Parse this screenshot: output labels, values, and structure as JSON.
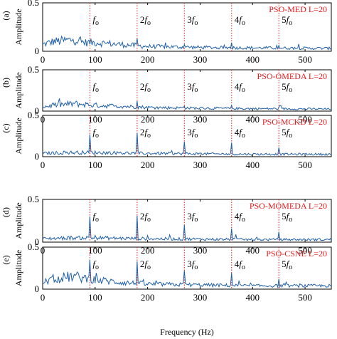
{
  "chart_data": {
    "type": "line",
    "xlabel": "Frequency (Hz)",
    "ylabel": "Amplitude",
    "xlim": [
      0,
      550
    ],
    "ylim": [
      0,
      0.5
    ],
    "xticks": [
      "0",
      "100",
      "200",
      "300",
      "400",
      "500"
    ],
    "yticks": [
      "0",
      "0.5"
    ],
    "grid": false,
    "line_color": "#1f5fa8",
    "marker_color": "#e41a1c",
    "harmonics": {
      "frequencies": [
        90,
        180,
        270,
        360,
        450
      ],
      "labels": [
        {
          "coef": "",
          "sym": "f",
          "sub": "o"
        },
        {
          "coef": "2",
          "sym": "f",
          "sub": "o"
        },
        {
          "coef": "3",
          "sym": "f",
          "sub": "o"
        },
        {
          "coef": "4",
          "sym": "f",
          "sub": "o"
        },
        {
          "coef": "5",
          "sym": "f",
          "sub": "o"
        }
      ]
    },
    "panels": [
      {
        "letter": "(a)",
        "method": "PSO-MED L=20",
        "baseline": [
          [
            0,
            0.07
          ],
          [
            20,
            0.1
          ],
          [
            40,
            0.11
          ],
          [
            60,
            0.12
          ],
          [
            80,
            0.09
          ],
          [
            100,
            0.09
          ],
          [
            150,
            0.07
          ],
          [
            200,
            0.05
          ],
          [
            300,
            0.04
          ],
          [
            400,
            0.035
          ],
          [
            550,
            0.03
          ]
        ],
        "peaks": [
          [
            180,
            0.13
          ],
          [
            270,
            0.07
          ],
          [
            360,
            0.09
          ],
          [
            450,
            0.06
          ]
        ]
      },
      {
        "letter": "(b)",
        "method": "PSO-OMEDA L=20",
        "baseline": [
          [
            0,
            0.05
          ],
          [
            20,
            0.07
          ],
          [
            40,
            0.08
          ],
          [
            60,
            0.09
          ],
          [
            80,
            0.08
          ],
          [
            100,
            0.07
          ],
          [
            150,
            0.06
          ],
          [
            200,
            0.045
          ],
          [
            300,
            0.035
          ],
          [
            400,
            0.03
          ],
          [
            550,
            0.025
          ]
        ],
        "peaks": [
          [
            180,
            0.12
          ],
          [
            270,
            0.06
          ],
          [
            360,
            0.07
          ],
          [
            450,
            0.05
          ]
        ]
      },
      {
        "letter": "(c)",
        "method": "PSO-MCKD L=20",
        "baseline": [
          [
            0,
            0.04
          ],
          [
            50,
            0.05
          ],
          [
            100,
            0.05
          ],
          [
            200,
            0.04
          ],
          [
            300,
            0.035
          ],
          [
            400,
            0.03
          ],
          [
            550,
            0.03
          ]
        ],
        "peaks": [
          [
            90,
            0.27
          ],
          [
            180,
            0.29
          ],
          [
            270,
            0.18
          ],
          [
            360,
            0.17
          ],
          [
            450,
            0.11
          ]
        ]
      },
      {
        "letter": "(d)",
        "method": "PSO-MOMEDA L=20",
        "baseline": [
          [
            0,
            0.04
          ],
          [
            50,
            0.05
          ],
          [
            100,
            0.05
          ],
          [
            200,
            0.04
          ],
          [
            300,
            0.035
          ],
          [
            400,
            0.03
          ],
          [
            550,
            0.03
          ]
        ],
        "peaks": [
          [
            90,
            0.3
          ],
          [
            180,
            0.31
          ],
          [
            270,
            0.2
          ],
          [
            360,
            0.16
          ],
          [
            450,
            0.12
          ]
        ]
      },
      {
        "letter": "(e)",
        "method": "PSO-CSNE L=20",
        "baseline": [
          [
            0,
            0.08
          ],
          [
            20,
            0.12
          ],
          [
            40,
            0.14
          ],
          [
            60,
            0.15
          ],
          [
            80,
            0.13
          ],
          [
            100,
            0.11
          ],
          [
            150,
            0.08
          ],
          [
            200,
            0.06
          ],
          [
            300,
            0.05
          ],
          [
            400,
            0.04
          ],
          [
            550,
            0.04
          ]
        ],
        "peaks": [
          [
            90,
            0.35
          ],
          [
            180,
            0.33
          ],
          [
            270,
            0.22
          ],
          [
            360,
            0.19
          ],
          [
            450,
            0.12
          ]
        ]
      }
    ]
  }
}
